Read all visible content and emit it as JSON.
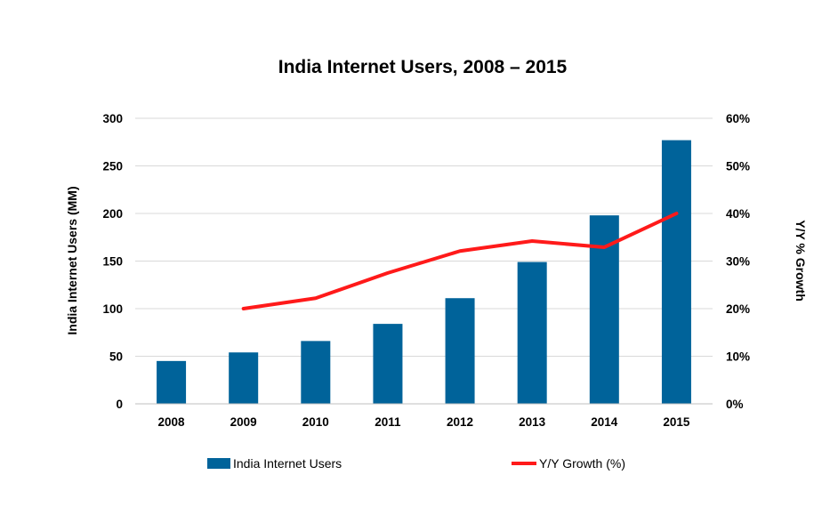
{
  "chart_data": {
    "type": "bar",
    "title": "India Internet Users, 2008 – 2015",
    "categories": [
      "2008",
      "2009",
      "2010",
      "2011",
      "2012",
      "2013",
      "2014",
      "2015"
    ],
    "ylabel": "India Internet Users (MM)",
    "y2label": "Y/Y % Growth",
    "ylim": [
      0,
      300
    ],
    "y2lim": [
      0,
      60
    ],
    "yticks": [
      "0",
      "50",
      "100",
      "150",
      "200",
      "250",
      "300"
    ],
    "y2ticks": [
      "0%",
      "10%",
      "20%",
      "30%",
      "40%",
      "50%",
      "60%"
    ],
    "grid": true,
    "legend_position": "bottom",
    "colors": {
      "bar": "#00639a",
      "line": "#ff1a1a"
    },
    "series": [
      {
        "name": "India Internet Users",
        "type": "bar",
        "axis": "left",
        "values": [
          45,
          54,
          66,
          84,
          111,
          149,
          198,
          277
        ]
      },
      {
        "name": "Y/Y Growth (%)",
        "type": "line",
        "axis": "right",
        "values": [
          null,
          20,
          22.2,
          27.5,
          32.1,
          34.2,
          32.9,
          40
        ]
      }
    ]
  }
}
